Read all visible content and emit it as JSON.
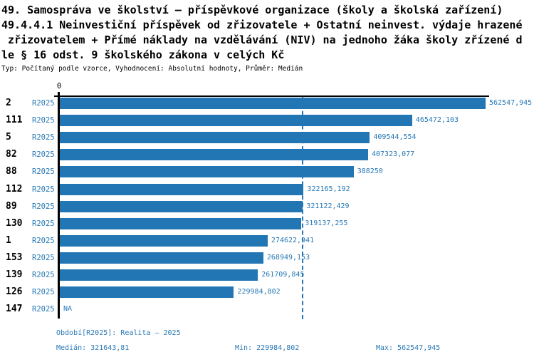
{
  "title": {
    "lines": [
      "49. Samospráva ve školství – příspěvkové organizace (školy a školská zařízení)",
      "49.4.4.1 Neinvestiční příspěvek od zřizovatele + Ostatní neinvest. výdaje hrazené",
      " zřizovatelem + Přímé náklady na vzdělávání (NIV) na jednoho žáka školy zřízené d",
      "le § 16 odst. 9 školského zákona v celých Kč"
    ],
    "meta": "Typ: Počítaný podle vzorce, Vyhodnocení: Absolutní hodnoty, Průměr: Medián"
  },
  "colors": {
    "bar": "#2276b4",
    "blue_text": "#2979b6",
    "axis": "#000000"
  },
  "chart_data": {
    "type": "bar",
    "orientation": "horizontal",
    "x_axis": {
      "zero_label": "0",
      "max": 562547.945
    },
    "median_line": {
      "value": 321643.81,
      "style": "dashed"
    },
    "rows": [
      {
        "id": "2",
        "period": "R2025",
        "value": 562547.945,
        "label": "562547,945"
      },
      {
        "id": "111",
        "period": "R2025",
        "value": 465472.103,
        "label": "465472,103"
      },
      {
        "id": "5",
        "period": "R2025",
        "value": 409544.554,
        "label": "409544,554"
      },
      {
        "id": "82",
        "period": "R2025",
        "value": 407323.077,
        "label": "407323,077"
      },
      {
        "id": "88",
        "period": "R2025",
        "value": 388250,
        "label": "388250"
      },
      {
        "id": "112",
        "period": "R2025",
        "value": 322165.192,
        "label": "322165,192"
      },
      {
        "id": "89",
        "period": "R2025",
        "value": 321122.429,
        "label": "321122,429"
      },
      {
        "id": "130",
        "period": "R2025",
        "value": 319137.255,
        "label": "319137,255"
      },
      {
        "id": "1",
        "period": "R2025",
        "value": 274622.941,
        "label": "274622,941"
      },
      {
        "id": "153",
        "period": "R2025",
        "value": 268949.153,
        "label": "268949,153"
      },
      {
        "id": "139",
        "period": "R2025",
        "value": 261709.845,
        "label": "261709,845"
      },
      {
        "id": "126",
        "period": "R2025",
        "value": 229984.802,
        "label": "229984,802"
      },
      {
        "id": "147",
        "period": "R2025",
        "value": null,
        "label": "NA"
      }
    ]
  },
  "footer": {
    "period": "Období[R2025]: Realita – 2025",
    "median": "Medián: 321643,81",
    "min": "Min: 229984,802",
    "max": "Max: 562547,945"
  }
}
